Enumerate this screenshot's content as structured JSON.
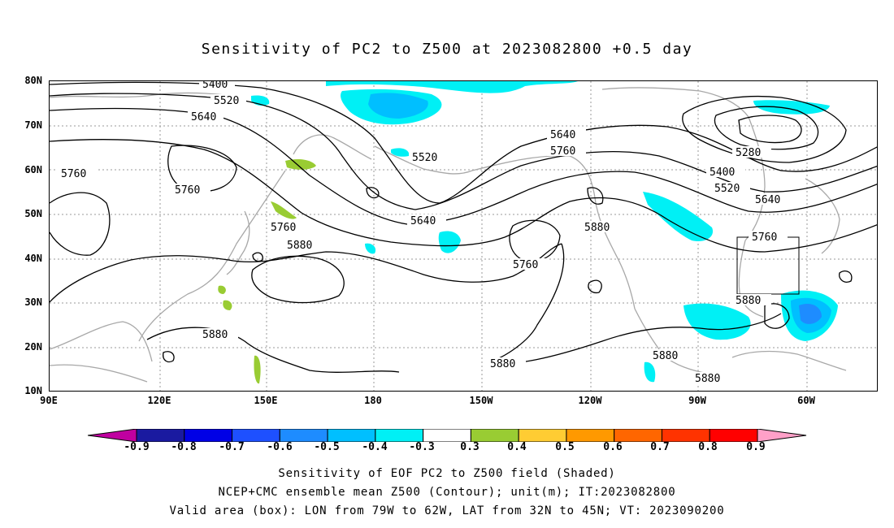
{
  "title": "Sensitivity of PC2 to Z500 at 2023082800 +0.5 day",
  "lat_labels": [
    "80N",
    "70N",
    "60N",
    "50N",
    "40N",
    "30N",
    "20N",
    "10N"
  ],
  "lon_labels": [
    "90E",
    "120E",
    "150E",
    "180",
    "150W",
    "120W",
    "90W",
    "60W"
  ],
  "contour_labels": {
    "c5400a": "5400",
    "c5520a": "5520",
    "c5640a": "5640",
    "c5760a": "5760",
    "c5760b": "5760",
    "c5520b": "5520",
    "c5640b": "5640",
    "c5760c": "5760",
    "c5880a": "5880",
    "c5880b": "5880",
    "c5640c": "5640",
    "c5760d": "5760",
    "c5760e": "5760",
    "c5880c": "5880",
    "c5280a": "5280",
    "c5400b": "5400",
    "c5520c": "5520",
    "c5640d": "5640",
    "c5760f": "5760",
    "c5880d": "5880",
    "c5880e": "5880",
    "c5880f": "5880",
    "c5880g": "5880"
  },
  "colorbar": {
    "labels": [
      "-0.9",
      "-0.8",
      "-0.7",
      "-0.6",
      "-0.5",
      "-0.4",
      "-0.3",
      "0.3",
      "0.4",
      "0.5",
      "0.6",
      "0.7",
      "0.8",
      "0.9"
    ],
    "colors": [
      "#1a1aa0",
      "#0000e6",
      "#1e50ff",
      "#1e8cff",
      "#00bfff",
      "#00f0f5",
      "#ffffff",
      "#99cc33",
      "#ffcc33",
      "#ff9900",
      "#ff6600",
      "#ff3300",
      "#ff0000"
    ],
    "low_end": "#c000a0",
    "high_end": "#ffa0c8"
  },
  "captions": {
    "line1": "Sensitivity of EOF PC2 to Z500 field (Shaded)",
    "line2": "NCEP+CMC ensemble mean Z500 (Contour); unit(m); IT:2023082800",
    "line3": "Valid area (box): LON from 79W to 62W, LAT from 32N to 45N; VT: 2023090200"
  }
}
